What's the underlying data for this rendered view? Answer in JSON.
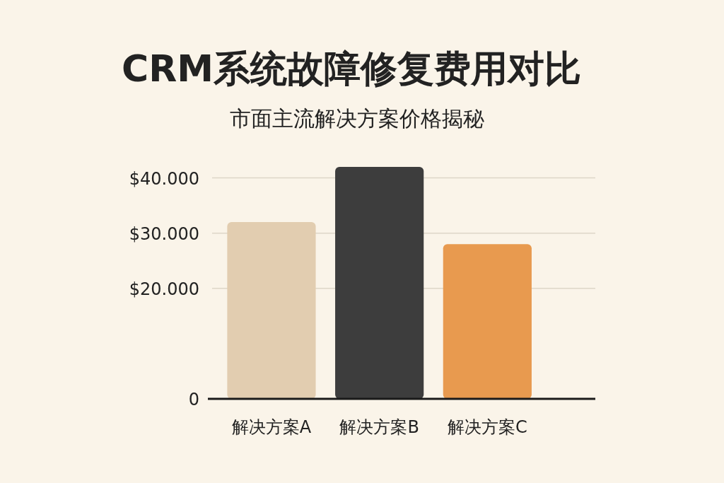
{
  "chart_data": {
    "type": "bar",
    "title": "CRM系统故障修复费用对比",
    "subtitle": "市面主流解决方案价格揭秘",
    "categories": [
      "解决方案A",
      "解决方案B",
      "解决方案C"
    ],
    "values": [
      32000,
      42000,
      28000
    ],
    "colors": [
      "#e2cdb0",
      "#3d3d3d",
      "#e89a4f"
    ],
    "ylim": [
      0,
      42000
    ],
    "yticks": [
      0,
      {
        "value": 20000,
        "label": "$20.000"
      },
      {
        "value": 30000,
        "label": "$30.000"
      },
      {
        "value": 40000,
        "label": "$40.000"
      }
    ],
    "grid": "y"
  }
}
